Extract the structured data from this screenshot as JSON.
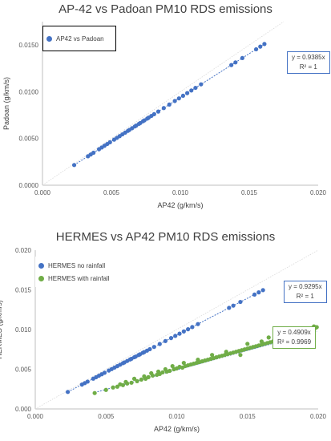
{
  "chart_data": [
    {
      "type": "scatter",
      "title": "AP-42 vs Padoan PM10 RDS emissions",
      "xlabel": "AP42 (g/km/s)",
      "ylabel": "Padoan (g/km/s)",
      "xlim": [
        0,
        0.02
      ],
      "ylim": [
        0,
        0.0175
      ],
      "xticks": [
        "0.000",
        "0.005",
        "0.010",
        "0.015",
        "0.020"
      ],
      "yticks": [
        "0.0000",
        "0.0050",
        "0.0100",
        "0.0150"
      ],
      "xtick_values": [
        0,
        0.005,
        0.01,
        0.015,
        0.02
      ],
      "ytick_values": [
        0,
        0.005,
        0.01,
        0.015
      ],
      "legend_placement": "top-left",
      "grid": false,
      "series": [
        {
          "name": "AP42 vs Padoan",
          "color": "#4472c4",
          "trend_slope": 0.9385,
          "equation": "y = 0.9385x",
          "r2": "R² = 1",
          "trend_color": "#4472c4",
          "equation_border": "#4472c4",
          "x": [
            0.0023,
            0.0033,
            0.0035,
            0.0037,
            0.0041,
            0.0043,
            0.0045,
            0.0047,
            0.0049,
            0.0052,
            0.0054,
            0.0056,
            0.0058,
            0.006,
            0.0062,
            0.0063,
            0.0065,
            0.0067,
            0.0068,
            0.007,
            0.0071,
            0.0073,
            0.0074,
            0.0076,
            0.0077,
            0.0079,
            0.0081,
            0.0084,
            0.0088,
            0.0092,
            0.0096,
            0.0099,
            0.0102,
            0.0105,
            0.0108,
            0.0111,
            0.0115,
            0.0137,
            0.014,
            0.0145,
            0.0155,
            0.0158,
            0.0161
          ]
        }
      ]
    },
    {
      "type": "scatter",
      "title": "HERMES vs AP42 PM10 RDS emissions",
      "xlabel": "AP42 (g/km/s)",
      "ylabel": "HERMES (g/km/s)",
      "xlim": [
        0,
        0.02
      ],
      "ylim": [
        0,
        0.02
      ],
      "xticks": [
        "0.000",
        "0.005",
        "0.010",
        "0.015",
        "0.020"
      ],
      "yticks": [
        "0.000",
        "0.005",
        "0.010",
        "0.015",
        "0.020"
      ],
      "xtick_values": [
        0,
        0.005,
        0.01,
        0.015,
        0.02
      ],
      "ytick_values": [
        0,
        0.005,
        0.01,
        0.015,
        0.02
      ],
      "legend_placement": "top-left",
      "grid": false,
      "series": [
        {
          "name": "HERMES no rainfall",
          "color": "#4472c4",
          "trend_slope": 0.9295,
          "equation": "y = 0.9295x",
          "r2": "R² = 1",
          "trend_color": "#4472c4",
          "equation_border": "#4472c4",
          "x": [
            0.0023,
            0.0033,
            0.0035,
            0.0037,
            0.0041,
            0.0043,
            0.0045,
            0.0047,
            0.0049,
            0.0052,
            0.0054,
            0.0056,
            0.0058,
            0.006,
            0.0062,
            0.0063,
            0.0065,
            0.0067,
            0.0068,
            0.007,
            0.0071,
            0.0073,
            0.0074,
            0.0076,
            0.0077,
            0.0079,
            0.0081,
            0.0084,
            0.0088,
            0.0092,
            0.0096,
            0.0099,
            0.0102,
            0.0105,
            0.0108,
            0.0111,
            0.0115,
            0.0137,
            0.014,
            0.0145,
            0.0155,
            0.0158,
            0.0161
          ]
        },
        {
          "name": "HERMES with rainfall",
          "color": "#70ad47",
          "trend_slope": 0.4909,
          "equation": "y = 0.4909x",
          "r2": "R² = 0.9969",
          "trend_color": "#4472c4",
          "equation_border": "#70ad47",
          "points": [
            [
              0.0042,
              0.002
            ],
            [
              0.005,
              0.0024
            ],
            [
              0.0055,
              0.0027
            ],
            [
              0.0058,
              0.0028
            ],
            [
              0.0062,
              0.003
            ],
            [
              0.0065,
              0.0032
            ],
            [
              0.0068,
              0.0033
            ],
            [
              0.0072,
              0.0035
            ],
            [
              0.0075,
              0.0037
            ],
            [
              0.0078,
              0.0038
            ],
            [
              0.008,
              0.004
            ],
            [
              0.0083,
              0.0042
            ],
            [
              0.0086,
              0.0043
            ],
            [
              0.0088,
              0.0044
            ],
            [
              0.009,
              0.0046
            ],
            [
              0.0093,
              0.0047
            ],
            [
              0.0095,
              0.0048
            ],
            [
              0.0098,
              0.005
            ],
            [
              0.01,
              0.0051
            ],
            [
              0.0102,
              0.0053
            ],
            [
              0.0104,
              0.0052
            ],
            [
              0.0106,
              0.0054
            ],
            [
              0.0108,
              0.0055
            ],
            [
              0.011,
              0.0056
            ],
            [
              0.0112,
              0.0057
            ],
            [
              0.0114,
              0.0058
            ],
            [
              0.0116,
              0.0059
            ],
            [
              0.0118,
              0.006
            ],
            [
              0.012,
              0.0061
            ],
            [
              0.0122,
              0.0062
            ],
            [
              0.0124,
              0.0063
            ],
            [
              0.0126,
              0.0064
            ],
            [
              0.0128,
              0.0065
            ],
            [
              0.013,
              0.0066
            ],
            [
              0.0132,
              0.0067
            ],
            [
              0.0134,
              0.0068
            ],
            [
              0.0136,
              0.0069
            ],
            [
              0.0138,
              0.007
            ],
            [
              0.014,
              0.0071
            ],
            [
              0.0142,
              0.0072
            ],
            [
              0.0144,
              0.0073
            ],
            [
              0.0146,
              0.0074
            ],
            [
              0.0148,
              0.0075
            ],
            [
              0.015,
              0.0076
            ],
            [
              0.0152,
              0.0077
            ],
            [
              0.0154,
              0.0078
            ],
            [
              0.0156,
              0.0079
            ],
            [
              0.0158,
              0.008
            ],
            [
              0.016,
              0.0081
            ],
            [
              0.0162,
              0.0082
            ],
            [
              0.0164,
              0.0083
            ],
            [
              0.0166,
              0.0084
            ],
            [
              0.0168,
              0.0085
            ],
            [
              0.017,
              0.0086
            ],
            [
              0.0172,
              0.0087
            ],
            [
              0.0174,
              0.0088
            ],
            [
              0.0176,
              0.0089
            ],
            [
              0.0178,
              0.009
            ],
            [
              0.018,
              0.0091
            ],
            [
              0.0182,
              0.0092
            ],
            [
              0.0184,
              0.0093
            ],
            [
              0.0186,
              0.0094
            ],
            [
              0.0188,
              0.0095
            ],
            [
              0.019,
              0.0096
            ],
            [
              0.0192,
              0.0097
            ],
            [
              0.0194,
              0.0098
            ],
            [
              0.0196,
              0.01
            ],
            [
              0.0198,
              0.0102
            ],
            [
              0.0199,
              0.0103
            ],
            [
              0.0197,
              0.0104
            ],
            [
              0.0195,
              0.0101
            ],
            [
              0.0185,
              0.0097
            ],
            [
              0.0175,
              0.0095
            ],
            [
              0.0165,
              0.009
            ],
            [
              0.0172,
              0.0082
            ],
            [
              0.016,
              0.0085
            ],
            [
              0.015,
              0.0082
            ],
            [
              0.0145,
              0.0068
            ],
            [
              0.0135,
              0.0072
            ],
            [
              0.0125,
              0.0068
            ],
            [
              0.0115,
              0.0062
            ],
            [
              0.0105,
              0.0058
            ],
            [
              0.0097,
              0.0054
            ],
            [
              0.0092,
              0.005
            ],
            [
              0.0087,
              0.0047
            ],
            [
              0.0082,
              0.0045
            ],
            [
              0.0077,
              0.0041
            ],
            [
              0.007,
              0.0038
            ],
            [
              0.0064,
              0.0034
            ],
            [
              0.006,
              0.0031
            ]
          ]
        }
      ]
    }
  ]
}
